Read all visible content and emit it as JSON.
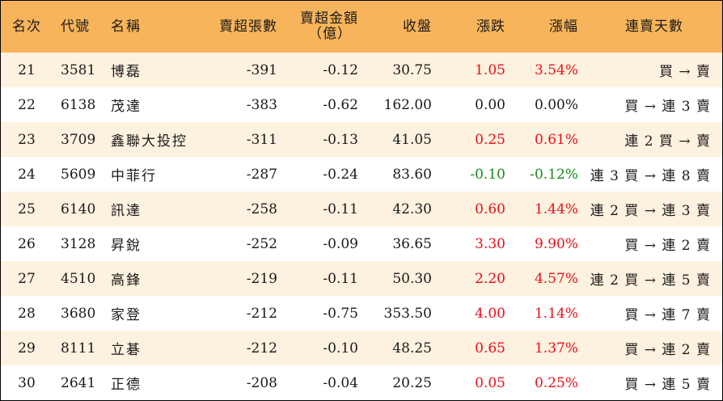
{
  "colors": {
    "header_bg": "#f8b45a",
    "stripe_bg": "#fdf1df",
    "up": "#e8101a",
    "down": "#1a8a1a"
  },
  "headers": {
    "rank": "名次",
    "code": "代號",
    "name": "名稱",
    "net_sell_lots": "賣超張數",
    "net_sell_amount_line1": "賣超金額",
    "net_sell_amount_line2": "（億）",
    "close": "收盤",
    "change": "漲跌",
    "change_pct": "漲幅",
    "streak": "連賣天數"
  },
  "rows": [
    {
      "rank": "21",
      "code": "3581",
      "name": "博磊",
      "lots": "-391",
      "amount": "-0.12",
      "close": "30.75",
      "change": "1.05",
      "pct": "3.54%",
      "dir": "up",
      "streak": "買 → 賣"
    },
    {
      "rank": "22",
      "code": "6138",
      "name": "茂達",
      "lots": "-383",
      "amount": "-0.62",
      "close": "162.00",
      "change": "0.00",
      "pct": "0.00%",
      "dir": "flat",
      "streak": "買 → 連 3 賣"
    },
    {
      "rank": "23",
      "code": "3709",
      "name": "鑫聯大投控",
      "lots": "-311",
      "amount": "-0.13",
      "close": "41.05",
      "change": "0.25",
      "pct": "0.61%",
      "dir": "up",
      "streak": "連 2 買 → 賣"
    },
    {
      "rank": "24",
      "code": "5609",
      "name": "中菲行",
      "lots": "-287",
      "amount": "-0.24",
      "close": "83.60",
      "change": "-0.10",
      "pct": "-0.12%",
      "dir": "down",
      "streak": "連 3 買 → 連 8 賣"
    },
    {
      "rank": "25",
      "code": "6140",
      "name": "訊達",
      "lots": "-258",
      "amount": "-0.11",
      "close": "42.30",
      "change": "0.60",
      "pct": "1.44%",
      "dir": "up",
      "streak": "連 2 買 → 連 3 賣"
    },
    {
      "rank": "26",
      "code": "3128",
      "name": "昇銳",
      "lots": "-252",
      "amount": "-0.09",
      "close": "36.65",
      "change": "3.30",
      "pct": "9.90%",
      "dir": "up",
      "streak": "買 → 連 2 賣"
    },
    {
      "rank": "27",
      "code": "4510",
      "name": "高鋒",
      "lots": "-219",
      "amount": "-0.11",
      "close": "50.30",
      "change": "2.20",
      "pct": "4.57%",
      "dir": "up",
      "streak": "連 2 買 → 連 5 賣"
    },
    {
      "rank": "28",
      "code": "3680",
      "name": "家登",
      "lots": "-212",
      "amount": "-0.75",
      "close": "353.50",
      "change": "4.00",
      "pct": "1.14%",
      "dir": "up",
      "streak": "買 → 連 7 賣"
    },
    {
      "rank": "29",
      "code": "8111",
      "name": "立碁",
      "lots": "-212",
      "amount": "-0.10",
      "close": "48.25",
      "change": "0.65",
      "pct": "1.37%",
      "dir": "up",
      "streak": "買 → 連 2 賣"
    },
    {
      "rank": "30",
      "code": "2641",
      "name": "正德",
      "lots": "-208",
      "amount": "-0.04",
      "close": "20.25",
      "change": "0.05",
      "pct": "0.25%",
      "dir": "up",
      "streak": "買 → 連 5 賣"
    }
  ]
}
